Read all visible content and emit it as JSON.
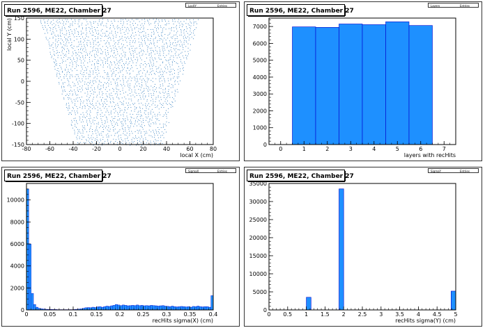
{
  "colors": {
    "fill": "#1e90ff",
    "stroke": "#0000cc",
    "axis": "#000000",
    "background": "#ffffff",
    "frame": "#333333",
    "marker": "#1a6fb8"
  },
  "chart_data": [
    {
      "type": "scatter",
      "title": "Run 2596, ME22, Chamber 27",
      "stats_labels": [
        "LocXY",
        "Entries"
      ],
      "xlabel": "local X (cm)",
      "ylabel": "local Y (cm)",
      "xlim": [
        -80,
        80
      ],
      "ylim": [
        -150,
        150
      ],
      "xticks": [
        -80,
        -60,
        -40,
        -20,
        0,
        20,
        40,
        60,
        80
      ],
      "xtick_labels": [
        "-80",
        "-60",
        "-40",
        "-20",
        "0",
        "20",
        "40",
        "60",
        "80"
      ],
      "yticks": [
        -150,
        -100,
        -50,
        0,
        50,
        100,
        150
      ],
      "ytick_labels": [
        "-150",
        "-100",
        "-50",
        "0",
        "50",
        "100",
        "150"
      ],
      "region": {
        "description": "trapezoid",
        "y_bottom": -150,
        "y_top": 150,
        "x_bottom": [
          -36,
          36
        ],
        "x_top": [
          -68,
          68
        ]
      }
    },
    {
      "type": "bar",
      "title": "Run 2596, ME22, Chamber 27",
      "stats_labels": [
        "Layers",
        "Entries"
      ],
      "xlabel": "layers with recHits",
      "ylabel": "",
      "xlim": [
        -0.5,
        7.5
      ],
      "ylim": [
        0,
        7500
      ],
      "xticks": [
        0,
        1,
        2,
        3,
        4,
        5,
        6,
        7
      ],
      "xtick_labels": [
        "0",
        "1",
        "2",
        "3",
        "4",
        "5",
        "6",
        "7"
      ],
      "yticks": [
        0,
        1000,
        2000,
        3000,
        4000,
        5000,
        6000,
        7000
      ],
      "ytick_labels": [
        "0",
        "1000",
        "2000",
        "3000",
        "4000",
        "5000",
        "6000",
        "7000"
      ],
      "bin_edges": [
        0.5,
        1.5,
        2.5,
        3.5,
        4.5,
        5.5,
        6.5
      ],
      "values": [
        6980,
        6950,
        7150,
        7110,
        7280,
        7060
      ]
    },
    {
      "type": "bar",
      "title": "Run 2596, ME22, Chamber 27",
      "stats_labels": [
        "SigmaX",
        "Entries"
      ],
      "xlabel": "recHits sigma(X) (cm)",
      "ylabel": "",
      "xlim": [
        0,
        0.4
      ],
      "ylim": [
        0,
        11500
      ],
      "xticks": [
        0,
        0.05,
        0.1,
        0.15,
        0.2,
        0.25,
        0.3,
        0.35,
        0.4
      ],
      "xtick_labels": [
        "0",
        "0.05",
        "0.1",
        "0.15",
        "0.2",
        "0.25",
        "0.3",
        "0.35",
        "0.4"
      ],
      "yticks": [
        0,
        2000,
        4000,
        6000,
        8000,
        10000
      ],
      "ytick_labels": [
        "0",
        "2000",
        "4000",
        "6000",
        "8000",
        "10000"
      ],
      "bin_width": 0.005,
      "values": [
        11000,
        6000,
        1500,
        500,
        250,
        150,
        100,
        80,
        60,
        50,
        50,
        40,
        40,
        30,
        30,
        30,
        30,
        30,
        30,
        30,
        40,
        60,
        80,
        100,
        150,
        200,
        220,
        200,
        250,
        220,
        280,
        300,
        250,
        300,
        350,
        320,
        380,
        420,
        500,
        450,
        400,
        450,
        420,
        380,
        400,
        420,
        400,
        450,
        400,
        420,
        380,
        400,
        380,
        420,
        400,
        380,
        350,
        380,
        400,
        350,
        330,
        300,
        350,
        300,
        280,
        300,
        320,
        300,
        280,
        300,
        250,
        320,
        300,
        350,
        300,
        280,
        300,
        300,
        250,
        1300
      ]
    },
    {
      "type": "bar",
      "title": "Run 2596, ME22, Chamber 27",
      "stats_labels": [
        "SigmaY",
        "Entries"
      ],
      "xlabel": "recHits sigma(Y) (cm)",
      "ylabel": "",
      "xlim": [
        0,
        5
      ],
      "ylim": [
        0,
        35000
      ],
      "xticks": [
        0,
        0.5,
        1,
        1.5,
        2,
        2.5,
        3,
        3.5,
        4,
        4.5,
        5
      ],
      "xtick_labels": [
        "0",
        "0.5",
        "1",
        "1.5",
        "2",
        "2.5",
        "3",
        "3.5",
        "4",
        "4.5",
        "5"
      ],
      "yticks": [
        0,
        5000,
        10000,
        15000,
        20000,
        25000,
        30000,
        35000
      ],
      "ytick_labels": [
        "0",
        "5000",
        "10000",
        "15000",
        "20000",
        "25000",
        "30000",
        "35000"
      ],
      "bin_width": 0.125,
      "bins": [
        {
          "x": 1.0,
          "value": 3500
        },
        {
          "x": 1.875,
          "value": 33500
        },
        {
          "x": 4.875,
          "value": 5200
        }
      ]
    }
  ]
}
